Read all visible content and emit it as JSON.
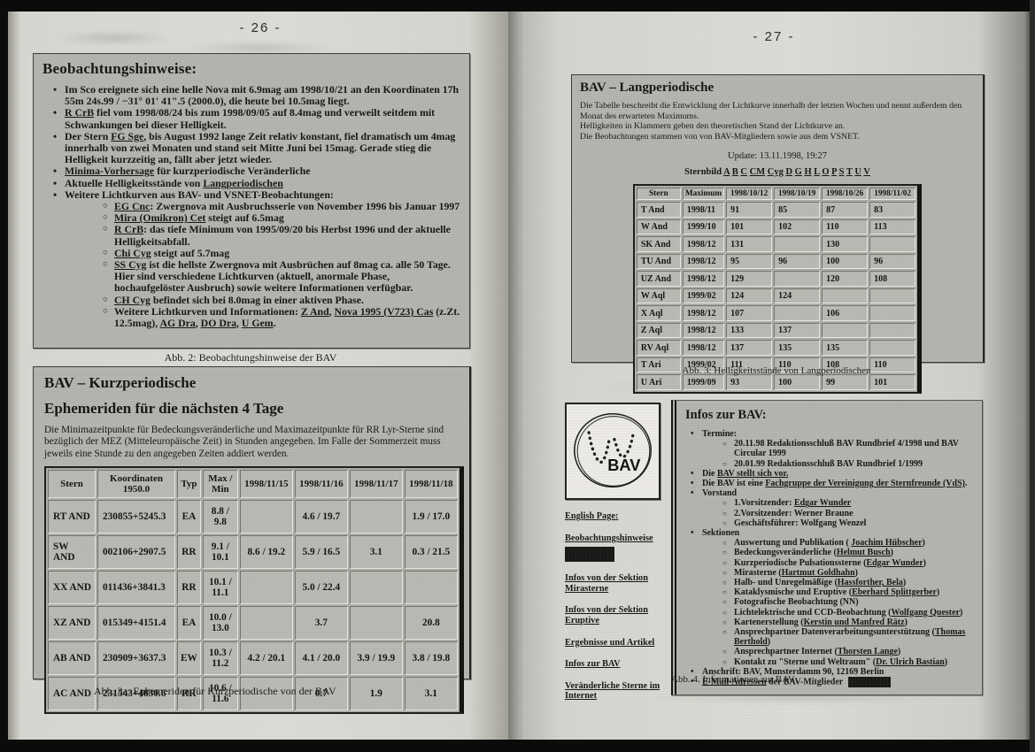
{
  "scan": {
    "left_page_number": "- 26 -",
    "right_page_number": "- 27 -"
  },
  "fig2": {
    "title": "Beobachtungshinweise:",
    "items": [
      {
        "l": 1,
        "t": "Im Sco ereignete sich eine helle Nova mit 6.9mag am 1998/10/21 an den Koordinaten 17h 55m 24s.99 / −31° 01' 41\".5 (2000.0), die heute bei 10.5mag liegt."
      },
      {
        "l": 1,
        "t": "«R CrB» fiel vom 1998/08/24 bis zum 1998/09/05 auf 8.4mag und verweilt seitdem mit Schwankungen bei dieser Helligkeit."
      },
      {
        "l": 1,
        "t": "Der Stern «FG Sge», bis August 1992 lange Zeit relativ konstant, fiel dramatisch um 4mag innerhalb von zwei Monaten und stand seit Mitte Juni bei 15mag. Gerade stieg die Helligkeit kurzzeitig an, fällt aber jetzt wieder."
      },
      {
        "l": 1,
        "t": "«Minima-Vorhersage» für kurzperiodische Veränderliche"
      },
      {
        "l": 1,
        "t": "Aktuelle Helligkeitsstände von «Langperiodischen»"
      },
      {
        "l": 1,
        "t": "Weitere Lichtkurven aus BAV- und VSNET-Beobachtungen:"
      },
      {
        "l": 2,
        "t": "«EG Cnc»: Zwergnova mit Ausbruchsserie von November 1996 bis Januar 1997"
      },
      {
        "l": 2,
        "t": "«Mira (Omikron) Cet» steigt auf 6.5mag"
      },
      {
        "l": 2,
        "t": "«R CrB»: das tiefe Minimum von 1995/09/20 bis Herbst 1996 und der aktuelle Helligkeitsabfall."
      },
      {
        "l": 2,
        "t": "«Chi Cyg» steigt auf 5.7mag"
      },
      {
        "l": 2,
        "t": "«SS Cyg» ist die hellste Zwergnova mit Ausbrüchen auf 8mag ca. alle 50 Tage. Hier sind verschiedene Lichtkurven (aktuell, anormale Phase, hochaufgelöster Ausbruch) sowie weitere Informationen verfügbar."
      },
      {
        "l": 2,
        "t": "«CH Cyg» befindet sich bei 8.0mag in einer aktiven Phase."
      },
      {
        "l": 2,
        "t": "Weitere Lichtkurven und Informationen: «Z And», «Nova 1995 (V723) Cas» (z.Zt. 12.5mag), «AG Dra», «DO Dra», «U Gem»."
      }
    ],
    "caption": "Abb. 2: Beobachtungshinweise der BAV"
  },
  "fig3a": {
    "title": "BAV – Kurzperiodische",
    "subtitle": "Ephemeriden für die nächsten 4 Tage",
    "intro": "Die Minimazeitpunkte für Bedeckungsveränderliche und Maximazeitpunkte für RR Lyr-Sterne sind bezüglich der MEZ (Mitteleuropäische Zeit) in Stunden angegeben. Im Falle der Sommerzeit muss jeweils eine Stunde zu den angegeben Zeiten addiert werden.",
    "table": {
      "headers": [
        "Stern",
        "Koordinaten 1950.0",
        "Typ",
        "Max / Min",
        "1998/11/15",
        "1998/11/16",
        "1998/11/17",
        "1998/11/18"
      ],
      "rows": [
        [
          "RT AND",
          "230855+5245.3",
          "EA",
          "8.8 / 9.8",
          "",
          "4.6 / 19.7",
          "",
          "1.9 / 17.0"
        ],
        [
          "SW AND",
          "002106+2907.5",
          "RR",
          "9.1 / 10.1",
          "8.6 / 19.2",
          "5.9 / 16.5",
          "3.1",
          "0.3 / 21.5"
        ],
        [
          "XX AND",
          "011436+3841.3",
          "RR",
          "10.1 / 11.1",
          "",
          "5.0 / 22.4",
          "",
          ""
        ],
        [
          "XZ AND",
          "015349+4151.4",
          "EA",
          "10.0 / 13.0",
          "",
          "3.7",
          "",
          "20.8"
        ],
        [
          "AB AND",
          "230909+3637.3",
          "EW",
          "10.3 / 11.2",
          "4.2 / 20.1",
          "4.1 / 20.0",
          "3.9 / 19.9",
          "3.8 / 19.8"
        ],
        [
          "AC AND",
          "231543+4830.6",
          "RR",
          "10.6 / 11.6",
          "",
          "0.7",
          "1.9",
          "3.1"
        ]
      ]
    },
    "caption": "Abb. 3a: Ephemeriden für Kurzperiodische von der BAV"
  },
  "fig3": {
    "title": "BAV – Langperiodische",
    "p1": "Die Tabelle beschreibt die Entwicklung der Lichtkurve innerhalb der letzten Wochen und nennt außerdem den Monat des erwarteten Maximums.",
    "p2": "Helligkeiten in Klammern geben den theoretischen Stand der Lichtkurve an.",
    "p3": "Die Beobachtungen stammen von von BAV-Mitgliedern sowie aus dem VSNET.",
    "update": "Update: 13.11.1998, 19:27",
    "sternbild": "Sternbild  «A» «B» «C» «CM» «Cyg» «D» «G» «H» «L» «O» «P» «S» «T» «U» «V»",
    "table": {
      "headers": [
        "Stern",
        "Maximum",
        "1998/10/12",
        "1998/10/19",
        "1998/10/26",
        "1998/11/02"
      ],
      "rows": [
        [
          "T And",
          "1998/11",
          "91",
          "85",
          "87",
          "83"
        ],
        [
          "W And",
          "1999/10",
          "101",
          "102",
          "110",
          "113"
        ],
        [
          "SK And",
          "1998/12",
          "131",
          "",
          "130",
          ""
        ],
        [
          "TU And",
          "1998/12",
          "95",
          "96",
          "100",
          "96"
        ],
        [
          "UZ And",
          "1998/12",
          "129",
          "",
          "120",
          "108"
        ],
        [
          "W Aql",
          "1999/02",
          "124",
          "124",
          "",
          ""
        ],
        [
          "X Aql",
          "1998/12",
          "107",
          "",
          "106",
          ""
        ],
        [
          "Z Aql",
          "1998/12",
          "133",
          "137",
          "",
          ""
        ],
        [
          "RV Aql",
          "1998/12",
          "137",
          "135",
          "135",
          ""
        ],
        [
          "T Ari",
          "1999/02",
          "111",
          "110",
          "108",
          "110"
        ],
        [
          "U Ari",
          "1999/09",
          "93",
          "100",
          "99",
          "101"
        ]
      ]
    },
    "caption": "Abb. 3: Helligkeitsstände von Langperiodischen"
  },
  "fig4": {
    "title": "Infos zur BAV:",
    "items": [
      {
        "l": 1,
        "t": "Termine:"
      },
      {
        "l": 2,
        "t": "20.11.98 Redaktionsschluß BAV Rundbrief 4/1998 und BAV Circular 1999"
      },
      {
        "l": 2,
        "t": "20.01.99 Redaktionsschluß BAV Rundbrief 1/1999"
      },
      {
        "l": 1,
        "t": "Die «BAV stellt sich vor.»"
      },
      {
        "l": 1,
        "t": "Die BAV ist eine «Fachgruppe der Vereinigung der Sternfreunde (VdS)»."
      },
      {
        "l": 1,
        "t": "Vorstand"
      },
      {
        "l": 2,
        "t": "1.Vorsitzender: «Edgar Wunder»"
      },
      {
        "l": 2,
        "t": "2.Vorsitzender: Werner Braune"
      },
      {
        "l": 2,
        "t": "Geschäftsführer: Wolfgang Wenzel"
      },
      {
        "l": 1,
        "t": "Sektionen"
      },
      {
        "l": 2,
        "t": "Auswertung und Publikation ( «Joachim Hübscher»)"
      },
      {
        "l": 2,
        "t": "Bedeckungsveränderliche («Helmut Busch»)"
      },
      {
        "l": 2,
        "t": "Kurzperiodische Pulsationssterne («Edgar Wunder»)"
      },
      {
        "l": 2,
        "t": "Mirasterne («Hartmut Goldhahn»)"
      },
      {
        "l": 2,
        "t": "Halb- und Unregelmäßige («Hassforther, Bela»)"
      },
      {
        "l": 2,
        "t": "Kataklysmische und Eruptive («Eberhard Splittgerber»)"
      },
      {
        "l": 2,
        "t": "Fotografische Beobachtung (NN)"
      },
      {
        "l": 2,
        "t": "Lichtelektrische und CCD-Beobachtung («Wolfgang Quester»)"
      },
      {
        "l": 2,
        "t": "Kartenerstellung («Kerstin und Manfred Rätz»)"
      },
      {
        "l": 2,
        "t": "Ansprechpartner Datenverarbeitungsunterstützung («Thomas Berthold»)"
      },
      {
        "l": 2,
        "t": "Ansprechpartner Internet («Thorsten Lange»)"
      },
      {
        "l": 2,
        "t": "Kontakt zu \"Sterne und Weltraum\" («Dr. Ulrich Bastian»)"
      },
      {
        "l": 1,
        "t": "Anschrift: BAV, Munsterdamm 90, 12169 Berlin"
      },
      {
        "l": 1,
        "t": "«E-Mail-Adressen» der BAV-Mitglieder [REDACT]"
      }
    ],
    "caption": "Abb. 4. Informationen zur BAV",
    "sidebar": {
      "logo_text": "BAV",
      "links": [
        {
          "label": "English Page:"
        },
        {
          "label": "Beobachtungshinweise",
          "redacted_after": true
        },
        {
          "label": "Infos von der Sektion Mirasterne"
        },
        {
          "label": "Infos von der Sektion Eruptive"
        },
        {
          "label": "Ergebnisse und Artikel"
        },
        {
          "label": "Infos zur BAV"
        },
        {
          "label": "Veränderliche Sterne im Internet"
        }
      ]
    }
  }
}
